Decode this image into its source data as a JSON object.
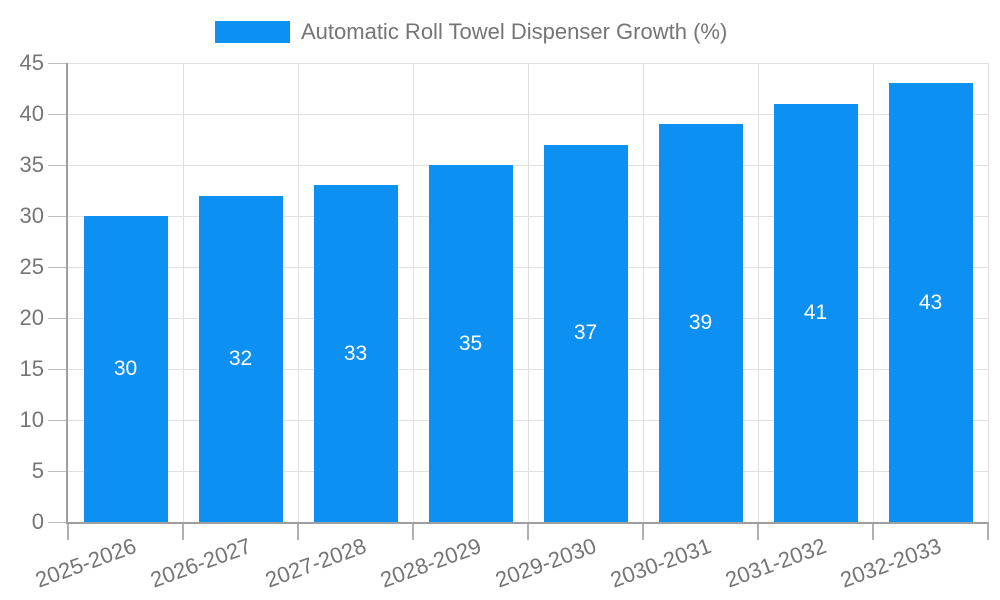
{
  "legend": {
    "label": "Automatic Roll Towel Dispenser Growth (%)",
    "swatch_color": "#0c90f2"
  },
  "chart_data": {
    "type": "bar",
    "title": "Automatic Roll Towel Dispenser Growth (%)",
    "categories": [
      "2025-2026",
      "2026-2027",
      "2027-2028",
      "2028-2029",
      "2029-2030",
      "2030-2031",
      "2031-2032",
      "2032-2033"
    ],
    "values": [
      30,
      32,
      33,
      35,
      37,
      39,
      41,
      43
    ],
    "bar_labels": [
      "30",
      "32",
      "33",
      "35",
      "37",
      "39",
      "41",
      "43"
    ],
    "xlabel": "",
    "ylabel": "",
    "ylim": [
      0,
      45
    ],
    "yticks": [
      0,
      5,
      10,
      15,
      20,
      25,
      30,
      35,
      40,
      45
    ],
    "grid": true,
    "legend_position": "top",
    "bar_color": "#0c90f2",
    "bar_label_color": "#ffffff"
  },
  "colors": {
    "background": "#ffffff",
    "axis_text": "#757575",
    "grid_line": "#e0e0e0",
    "axis_line": "#9e9e9e",
    "tick_line": "#b0b0b0"
  }
}
